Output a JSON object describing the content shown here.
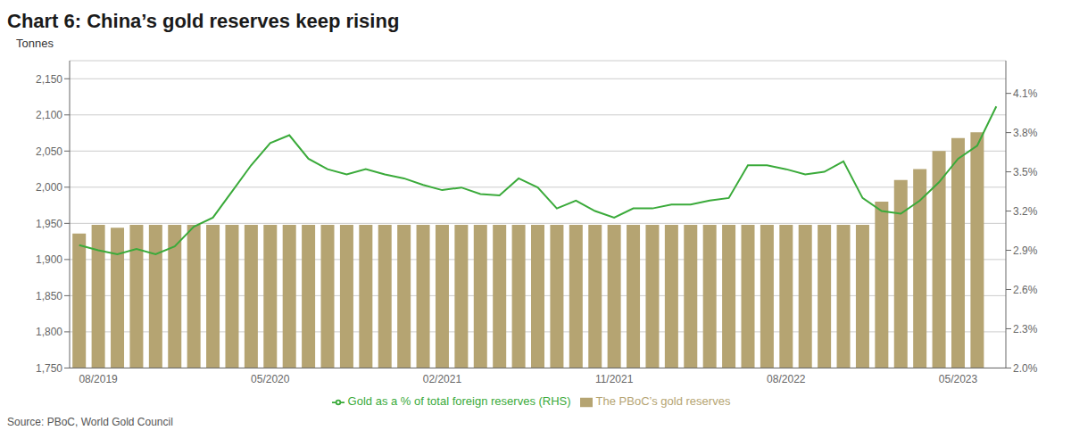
{
  "chart_data": {
    "type": "bar",
    "title": "Chart 6: China’s gold reserves keep rising",
    "ylabel": "Tonnes",
    "annotations": [
      "Source: PBoC, World Gold Council"
    ],
    "categories": [
      null,
      "08/2019",
      null,
      null,
      null,
      null,
      null,
      null,
      null,
      null,
      "05/2020",
      null,
      null,
      null,
      null,
      null,
      null,
      null,
      null,
      "02/2021",
      null,
      null,
      null,
      null,
      null,
      null,
      null,
      null,
      "11/2021",
      null,
      null,
      null,
      null,
      null,
      null,
      null,
      null,
      "08/2022",
      null,
      null,
      null,
      null,
      null,
      null,
      null,
      null,
      "05/2023",
      null,
      null
    ],
    "series": [
      {
        "name": "The PBoC’s gold reserves",
        "type": "bar",
        "color": "#b5a472",
        "values": [
          1936,
          1948,
          1944,
          1948,
          1948,
          1948,
          1948,
          1948,
          1948,
          1948,
          1948,
          1948,
          1948,
          1948,
          1948,
          1948,
          1948,
          1948,
          1948,
          1948,
          1948,
          1948,
          1948,
          1948,
          1948,
          1948,
          1948,
          1948,
          1948,
          1948,
          1948,
          1948,
          1948,
          1948,
          1948,
          1948,
          1948,
          1948,
          1948,
          1948,
          1948,
          1948,
          1980,
          2010,
          2025,
          2050,
          2068,
          2076,
          null
        ]
      },
      {
        "name": "Gold as a % of total foreign reserves (RHS)",
        "type": "line",
        "color": "#3aaa3a",
        "axis": "y2",
        "values": [
          2.94,
          2.9,
          2.87,
          2.91,
          2.87,
          2.93,
          3.08,
          3.15,
          3.35,
          3.55,
          3.72,
          3.78,
          3.6,
          3.52,
          3.48,
          3.52,
          3.48,
          3.45,
          3.4,
          3.36,
          3.38,
          3.33,
          3.32,
          3.45,
          3.38,
          3.22,
          3.28,
          3.2,
          3.15,
          3.22,
          3.22,
          3.25,
          3.25,
          3.28,
          3.3,
          3.55,
          3.55,
          3.52,
          3.48,
          3.5,
          3.58,
          3.3,
          3.2,
          3.18,
          3.28,
          3.42,
          3.6,
          3.7,
          4.0
        ]
      }
    ],
    "ylim": [
      1750,
      2175
    ],
    "yticks": [
      {
        "value": 1750,
        "label": "1,750"
      },
      {
        "value": 1800,
        "label": "1,800"
      },
      {
        "value": 1850,
        "label": "1,850"
      },
      {
        "value": 1900,
        "label": "1,900"
      },
      {
        "value": 1950,
        "label": "1,950"
      },
      {
        "value": 2000,
        "label": "2,000"
      },
      {
        "value": 2050,
        "label": "2,050"
      },
      {
        "value": 2100,
        "label": "2,100"
      },
      {
        "value": 2150,
        "label": "2,150"
      }
    ],
    "y2lim": [
      2.0,
      4.35
    ],
    "y2ticks": [
      {
        "value": 2.0,
        "label": "2.0%"
      },
      {
        "value": 2.3,
        "label": "2.3%"
      },
      {
        "value": 2.6,
        "label": "2.6%"
      },
      {
        "value": 2.9,
        "label": "2.9%"
      },
      {
        "value": 3.2,
        "label": "3.2%"
      },
      {
        "value": 3.5,
        "label": "3.5%"
      },
      {
        "value": 3.8,
        "label": "3.8%"
      },
      {
        "value": 4.1,
        "label": "4.1%"
      }
    ],
    "grid": true,
    "legend": "bottom"
  }
}
